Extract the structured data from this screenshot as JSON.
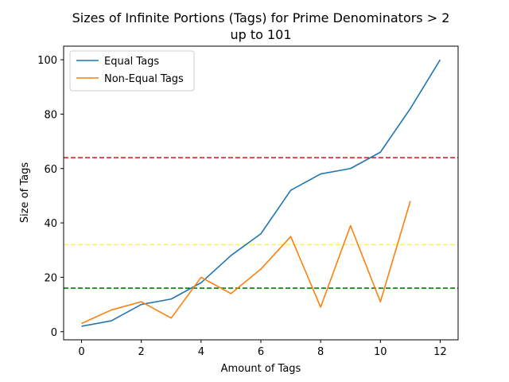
{
  "chart_data": {
    "type": "line",
    "title": [
      "Sizes of Infinite Portions (Tags) for Prime Denominators > 2",
      "up to 101"
    ],
    "xlabel": "Amount of Tags",
    "ylabel": "Size of Tags",
    "xlim": [
      -0.6,
      12.6
    ],
    "ylim": [
      -3,
      105
    ],
    "xticks": [
      0,
      2,
      4,
      6,
      8,
      10,
      12
    ],
    "yticks": [
      0,
      20,
      40,
      60,
      80,
      100
    ],
    "grid": false,
    "legend_position": "top-left",
    "series": [
      {
        "name": "Equal Tags",
        "color": "#1f77b4",
        "x": [
          0,
          1,
          2,
          3,
          4,
          5,
          6,
          7,
          8,
          9,
          10,
          11,
          12
        ],
        "y": [
          2,
          4,
          10,
          12,
          18,
          28,
          36,
          52,
          58,
          60,
          66,
          82,
          100
        ]
      },
      {
        "name": "Non-Equal Tags",
        "color": "#ff7f0e",
        "x": [
          0,
          1,
          2,
          3,
          4,
          5,
          6,
          7,
          8,
          9,
          10,
          11
        ],
        "y": [
          3,
          8,
          11,
          5,
          20,
          14,
          23,
          35,
          9,
          39,
          11,
          48
        ]
      }
    ],
    "reference_lines": [
      {
        "y": 64,
        "color": "#d62728",
        "style": "dashed"
      },
      {
        "y": 32,
        "color": "#ffff33",
        "style": "dashed"
      },
      {
        "y": 16,
        "color": "#008000",
        "style": "dashed"
      }
    ]
  }
}
